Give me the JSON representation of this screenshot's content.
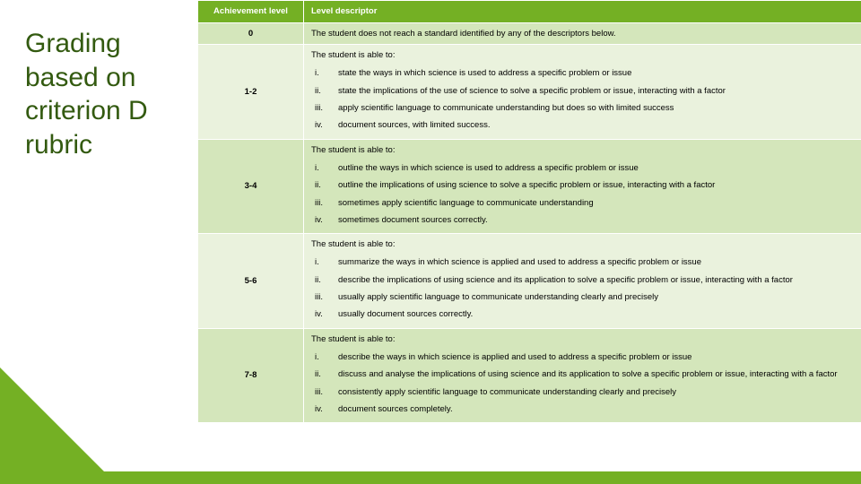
{
  "colors": {
    "accent": "#74b024",
    "title": "#335a10",
    "bandA": "#d4e6bb",
    "bandB": "#eaf2dd"
  },
  "title": "Grading based on criterion D rubric",
  "headers": {
    "level": "Achievement level",
    "descriptor": "Level descriptor"
  },
  "intro": "The student is able to:",
  "rows": [
    {
      "level": "0",
      "plain": "The student does not reach a standard identified by any of the descriptors below."
    },
    {
      "level": "1-2",
      "items": [
        "state the ways in which science is used to address a specific problem or issue",
        "state the implications of the use of science to solve a specific problem or issue, interacting with a factor",
        "apply scientific language to communicate understanding but does so with limited success",
        "document sources, with limited success."
      ]
    },
    {
      "level": "3-4",
      "items": [
        "outline the ways in which science is used to address a specific problem or issue",
        "outline the implications of using science to solve a specific problem or issue, interacting with a factor",
        "sometimes apply scientific language to communicate understanding",
        "sometimes document sources correctly."
      ]
    },
    {
      "level": "5-6",
      "items": [
        "summarize the ways in which science is applied and used to address a specific problem or issue",
        "describe the implications of using science and its application to solve a specific problem or issue, interacting with a factor",
        "usually apply scientific language to communicate understanding clearly and precisely",
        "usually document sources correctly."
      ]
    },
    {
      "level": "7-8",
      "items": [
        "describe the ways in which science is applied and used to address a specific problem or issue",
        "discuss and analyse the implications of using science and its application to solve a specific problem or issue, interacting with a factor",
        "consistently apply scientific language to communicate understanding clearly and precisely",
        "document sources completely."
      ]
    }
  ],
  "roman": [
    "i.",
    "ii.",
    "iii.",
    "iv."
  ]
}
